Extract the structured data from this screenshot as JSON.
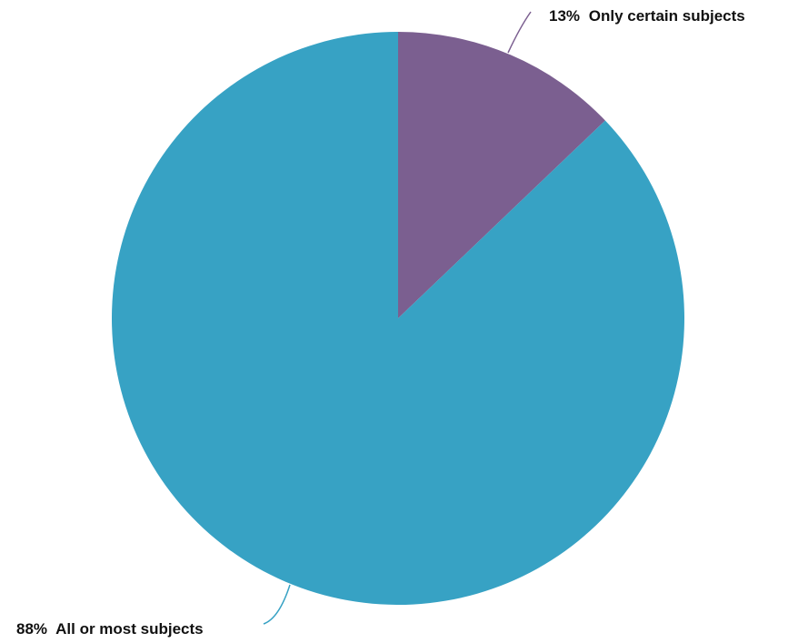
{
  "chart_data": {
    "type": "pie",
    "title": "",
    "slices": [
      {
        "label": "Only certain subjects",
        "value": 13,
        "value_label": "13%",
        "color": "#7b5f90"
      },
      {
        "label": "All or most subjects",
        "value": 88,
        "value_label": "88%",
        "color": "#37a2c4"
      }
    ],
    "legend": "none"
  }
}
